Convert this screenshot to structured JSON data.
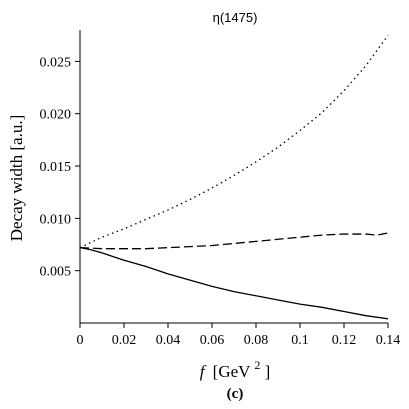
{
  "chart_data": {
    "type": "line",
    "title": "η(1475)",
    "xlabel_italic": "f",
    "xlabel_unit": "[GeV",
    "xlabel_exp": "2",
    "xlabel_close": "]",
    "ylabel": "Decay width [a.u.]",
    "panel_label": "(c)",
    "xlim": [
      0,
      0.14
    ],
    "ylim": [
      0,
      0.028
    ],
    "x_ticks": [
      0,
      0.02,
      0.04,
      0.06,
      0.08,
      0.1,
      0.12,
      0.14
    ],
    "x_tick_labels": [
      "0",
      "0.02",
      "0.04",
      "0.06",
      "0.08",
      "0.1",
      "0.12",
      "0.14"
    ],
    "y_ticks": [
      0.005,
      0.01,
      0.015,
      0.02,
      0.025
    ],
    "y_tick_labels": [
      "0.005",
      "0.010",
      "0.015",
      "0.020",
      "0.025"
    ],
    "series": [
      {
        "style": "dotted",
        "x": [
          0,
          0.01,
          0.02,
          0.03,
          0.04,
          0.05,
          0.06,
          0.07,
          0.08,
          0.09,
          0.1,
          0.11,
          0.12,
          0.13,
          0.14
        ],
        "y": [
          0.0072,
          0.0082,
          0.009,
          0.0099,
          0.0108,
          0.0118,
          0.0129,
          0.0141,
          0.0154,
          0.0168,
          0.0184,
          0.0201,
          0.0222,
          0.0246,
          0.0275
        ]
      },
      {
        "style": "dashed",
        "x": [
          0,
          0.01,
          0.02,
          0.03,
          0.04,
          0.05,
          0.06,
          0.07,
          0.08,
          0.09,
          0.1,
          0.11,
          0.12,
          0.13,
          0.135,
          0.14
        ],
        "y": [
          0.0072,
          0.0071,
          0.0071,
          0.0071,
          0.0072,
          0.0073,
          0.0074,
          0.0076,
          0.0078,
          0.008,
          0.0082,
          0.0084,
          0.0085,
          0.0085,
          0.0084,
          0.0086
        ]
      },
      {
        "style": "solid",
        "x": [
          0,
          0.005,
          0.01,
          0.02,
          0.03,
          0.04,
          0.05,
          0.06,
          0.07,
          0.08,
          0.09,
          0.1,
          0.11,
          0.12,
          0.13,
          0.14
        ],
        "y": [
          0.0072,
          0.007,
          0.0067,
          0.006,
          0.0054,
          0.0047,
          0.0041,
          0.0035,
          0.003,
          0.0026,
          0.0022,
          0.0018,
          0.0015,
          0.0011,
          0.0007,
          0.0004
        ]
      }
    ],
    "grid": false
  }
}
